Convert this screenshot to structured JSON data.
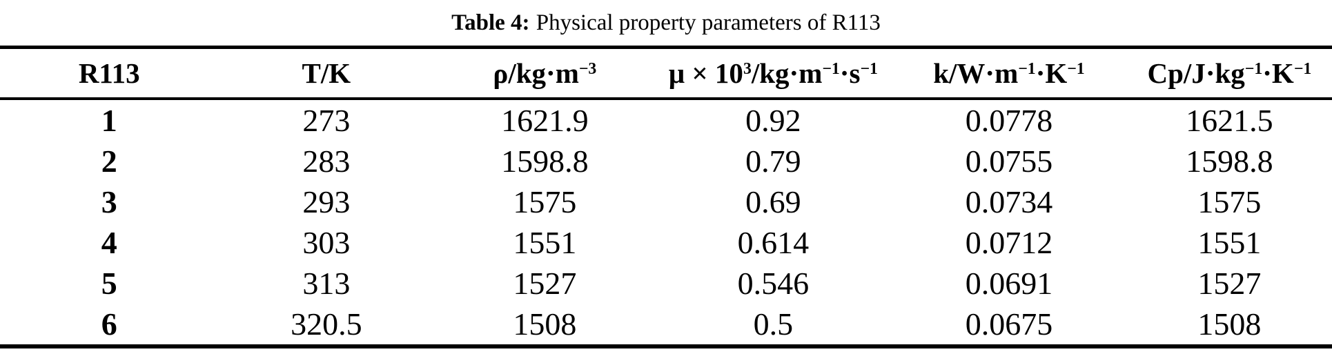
{
  "caption": {
    "label": "Table 4:",
    "text": "Physical property parameters of R113"
  },
  "table": {
    "columns": [
      {
        "name": "r113",
        "segments": [
          {
            "text": "R113"
          }
        ]
      },
      {
        "name": "temperature",
        "segments": [
          {
            "text": "T/K"
          }
        ]
      },
      {
        "name": "density",
        "segments": [
          {
            "text": "ρ/kg·m"
          },
          {
            "sup": "−3"
          }
        ]
      },
      {
        "name": "viscosity",
        "segments": [
          {
            "text": "μ × 10"
          },
          {
            "sup": "3"
          },
          {
            "text": "/kg·m"
          },
          {
            "sup": "−1"
          },
          {
            "text": "·s"
          },
          {
            "sup": "−1"
          }
        ]
      },
      {
        "name": "thermal-conductivity",
        "segments": [
          {
            "text": "k/W·m"
          },
          {
            "sup": "−1"
          },
          {
            "text": "·K"
          },
          {
            "sup": "−1"
          }
        ]
      },
      {
        "name": "specific-heat",
        "segments": [
          {
            "text": "Cp/J·kg"
          },
          {
            "sup": "−1"
          },
          {
            "text": "·K"
          },
          {
            "sup": "−1"
          }
        ]
      }
    ],
    "rows": [
      [
        "1",
        "273",
        "1621.9",
        "0.92",
        "0.0778",
        "1621.5"
      ],
      [
        "2",
        "283",
        "1598.8",
        "0.79",
        "0.0755",
        "1598.8"
      ],
      [
        "3",
        "293",
        "1575",
        "0.69",
        "0.0734",
        "1575"
      ],
      [
        "4",
        "303",
        "1551",
        "0.614",
        "0.0712",
        "1551"
      ],
      [
        "5",
        "313",
        "1527",
        "0.546",
        "0.0691",
        "1527"
      ],
      [
        "6",
        "320.5",
        "1508",
        "0.5",
        "0.0675",
        "1508"
      ]
    ]
  },
  "chart_data": {
    "type": "table",
    "title": "Table 4: Physical property parameters of R113",
    "columns": [
      "R113",
      "T/K",
      "ρ/kg·m⁻³",
      "μ × 10³/kg·m⁻¹·s⁻¹",
      "k/W·m⁻¹·K⁻¹",
      "Cp/J·kg⁻¹·K⁻¹"
    ],
    "rows": [
      [
        1,
        273,
        1621.9,
        0.92,
        0.0778,
        1621.5
      ],
      [
        2,
        283,
        1598.8,
        0.79,
        0.0755,
        1598.8
      ],
      [
        3,
        293,
        1575,
        0.69,
        0.0734,
        1575
      ],
      [
        4,
        303,
        1551,
        0.614,
        0.0712,
        1551
      ],
      [
        5,
        313,
        1527,
        0.546,
        0.0691,
        1527
      ],
      [
        6,
        320.5,
        1508,
        0.5,
        0.0675,
        1508
      ]
    ]
  },
  "colors": {
    "text": "#000000",
    "background": "#ffffff",
    "rule": "#000000"
  }
}
